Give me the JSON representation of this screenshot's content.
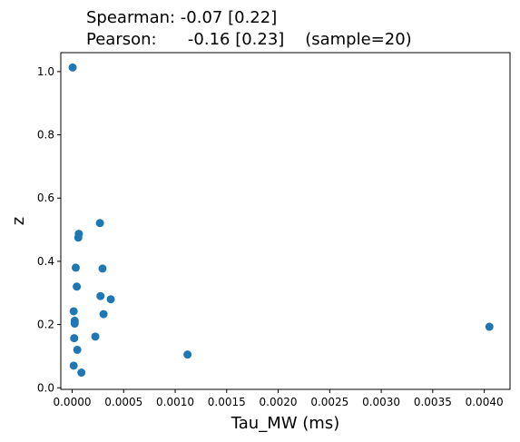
{
  "chart_data": {
    "type": "scatter",
    "title_lines": [
      "Spearman: -0.07 [0.22]",
      "Pearson:      -0.16 [0.23]    (sample=20)"
    ],
    "xlabel": "Tau_MW (ms)",
    "ylabel": "z",
    "xlim": [
      -0.00011,
      0.00425
    ],
    "ylim": [
      -0.005,
      1.06
    ],
    "xticks": [
      "0.0000",
      "0.0005",
      "0.0010",
      "0.0015",
      "0.0020",
      "0.0025",
      "0.0030",
      "0.0035",
      "0.0040"
    ],
    "xtick_values": [
      0,
      0.0005,
      0.001,
      0.0015,
      0.002,
      0.0025,
      0.003,
      0.0035,
      0.004
    ],
    "yticks": [
      "0.0",
      "0.2",
      "0.4",
      "0.6",
      "0.8",
      "1.0"
    ],
    "ytick_values": [
      0,
      0.2,
      0.4,
      0.6,
      0.8,
      1.0
    ],
    "grid": false,
    "point_color": "#1f77b4",
    "points": [
      {
        "x": 5e-06,
        "y": 1.013
      },
      {
        "x": 1.5e-05,
        "y": 0.242
      },
      {
        "x": 1.5e-05,
        "y": 0.07
      },
      {
        "x": 2e-05,
        "y": 0.157
      },
      {
        "x": 2.5e-05,
        "y": 0.212
      },
      {
        "x": 2.5e-05,
        "y": 0.203
      },
      {
        "x": 3.5e-05,
        "y": 0.38
      },
      {
        "x": 4.5e-05,
        "y": 0.32
      },
      {
        "x": 5e-05,
        "y": 0.12
      },
      {
        "x": 6e-05,
        "y": 0.475
      },
      {
        "x": 6.5e-05,
        "y": 0.487
      },
      {
        "x": 9e-05,
        "y": 0.048
      },
      {
        "x": 0.000225,
        "y": 0.162
      },
      {
        "x": 0.00027,
        "y": 0.521
      },
      {
        "x": 0.000275,
        "y": 0.29
      },
      {
        "x": 0.000295,
        "y": 0.377
      },
      {
        "x": 0.000305,
        "y": 0.233
      },
      {
        "x": 0.000375,
        "y": 0.28
      },
      {
        "x": 0.00112,
        "y": 0.105
      },
      {
        "x": 0.00405,
        "y": 0.193
      }
    ]
  }
}
